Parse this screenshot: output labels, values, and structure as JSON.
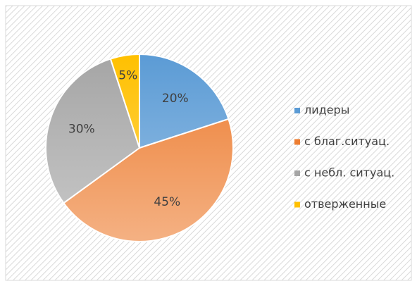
{
  "chart_data": {
    "type": "pie",
    "categories": [
      "лидеры",
      "с благ.ситуац.",
      "с небл. ситуац.",
      "отверженные"
    ],
    "values": [
      20,
      45,
      30,
      5
    ],
    "value_labels": [
      "20%",
      "45%",
      "30%",
      "5%"
    ],
    "colors": [
      "#5b9bd5",
      "#ed7d31",
      "#a5a5a5",
      "#ffc000"
    ],
    "legend": "right"
  }
}
